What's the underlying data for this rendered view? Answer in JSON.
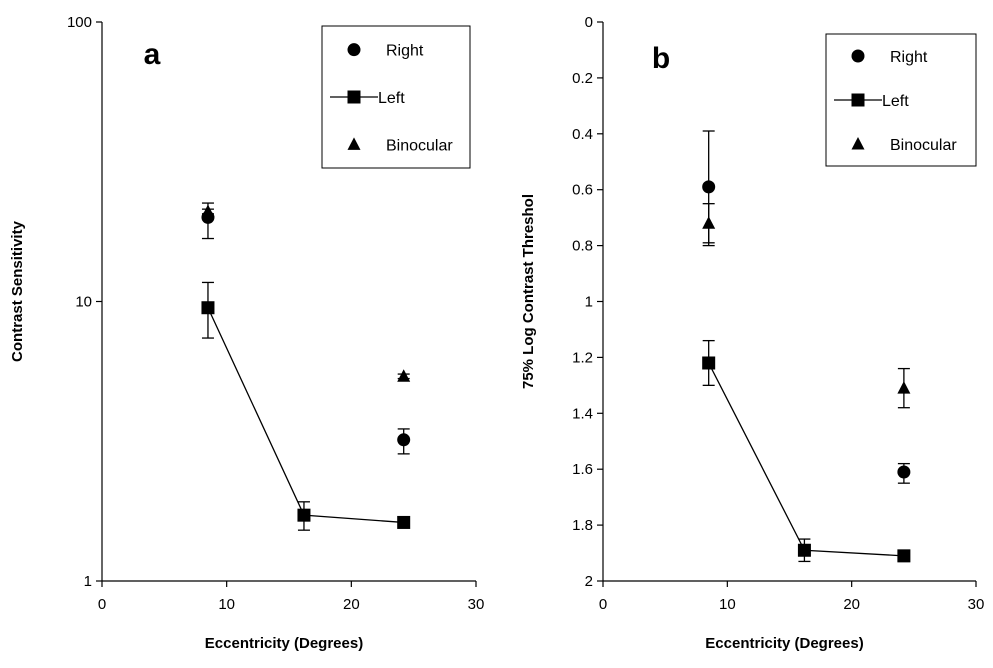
{
  "chart_data": [
    {
      "type": "scatter",
      "panel_label": "a",
      "xlabel": "Eccentricity (Degrees)",
      "ylabel": "Contrast Sensitivity",
      "xlim": [
        0,
        30
      ],
      "ylim": [
        1,
        100
      ],
      "yscale": "log",
      "x_ticks": [
        "0",
        "10",
        "20",
        "30"
      ],
      "y_ticks": [
        "1",
        "10",
        "100"
      ],
      "grid": false,
      "legend_position": "top-right",
      "series": [
        {
          "name": "Right",
          "marker": "circle",
          "line": false,
          "points": [
            {
              "x": 8.5,
              "y": 20.0,
              "err_low": 16.8,
              "err_high": 22.5
            },
            {
              "x": 24.2,
              "y": 3.2,
              "err_low": 2.85,
              "err_high": 3.5
            }
          ]
        },
        {
          "name": "Left",
          "marker": "square",
          "line": true,
          "points": [
            {
              "x": 8.5,
              "y": 9.5,
              "err_low": 7.4,
              "err_high": 11.7
            },
            {
              "x": 16.2,
              "y": 1.72,
              "err_low": 1.52,
              "err_high": 1.92
            },
            {
              "x": 24.2,
              "y": 1.62,
              "err_low": 1.6,
              "err_high": 1.64
            }
          ]
        },
        {
          "name": "Binocular",
          "marker": "triangle",
          "line": false,
          "points": [
            {
              "x": 8.5,
              "y": 21.0,
              "err_low": 20.6,
              "err_high": 21.4
            },
            {
              "x": 24.2,
              "y": 5.4,
              "err_low": 5.3,
              "err_high": 5.5
            }
          ]
        }
      ]
    },
    {
      "type": "scatter",
      "panel_label": "b",
      "xlabel": "Eccentricity (Degrees)",
      "ylabel": "75% Log Contrast Threshol",
      "xlim": [
        0,
        30
      ],
      "ylim": [
        2,
        0
      ],
      "y_inverted": true,
      "x_ticks": [
        "0",
        "10",
        "20",
        "30"
      ],
      "y_ticks": [
        "0",
        "0.2",
        "0.4",
        "0.6",
        "0.8",
        "1",
        "1.2",
        "1.4",
        "1.6",
        "1.8",
        "2"
      ],
      "grid": false,
      "legend_position": "top-right",
      "series": [
        {
          "name": "Right",
          "marker": "circle",
          "line": false,
          "points": [
            {
              "x": 8.5,
              "y": 0.59,
              "err_low": 0.39,
              "err_high": 0.79
            },
            {
              "x": 24.2,
              "y": 1.61,
              "err_low": 1.58,
              "err_high": 1.65
            }
          ]
        },
        {
          "name": "Left",
          "marker": "square",
          "line": true,
          "points": [
            {
              "x": 8.5,
              "y": 1.22,
              "err_low": 1.14,
              "err_high": 1.3
            },
            {
              "x": 16.2,
              "y": 1.89,
              "err_low": 1.85,
              "err_high": 1.93
            },
            {
              "x": 24.2,
              "y": 1.91,
              "err_low": 1.89,
              "err_high": 1.93
            }
          ]
        },
        {
          "name": "Binocular",
          "marker": "triangle",
          "line": false,
          "points": [
            {
              "x": 8.5,
              "y": 0.72,
              "err_low": 0.65,
              "err_high": 0.8
            },
            {
              "x": 24.2,
              "y": 1.31,
              "err_low": 1.24,
              "err_high": 1.38
            }
          ]
        }
      ]
    }
  ]
}
